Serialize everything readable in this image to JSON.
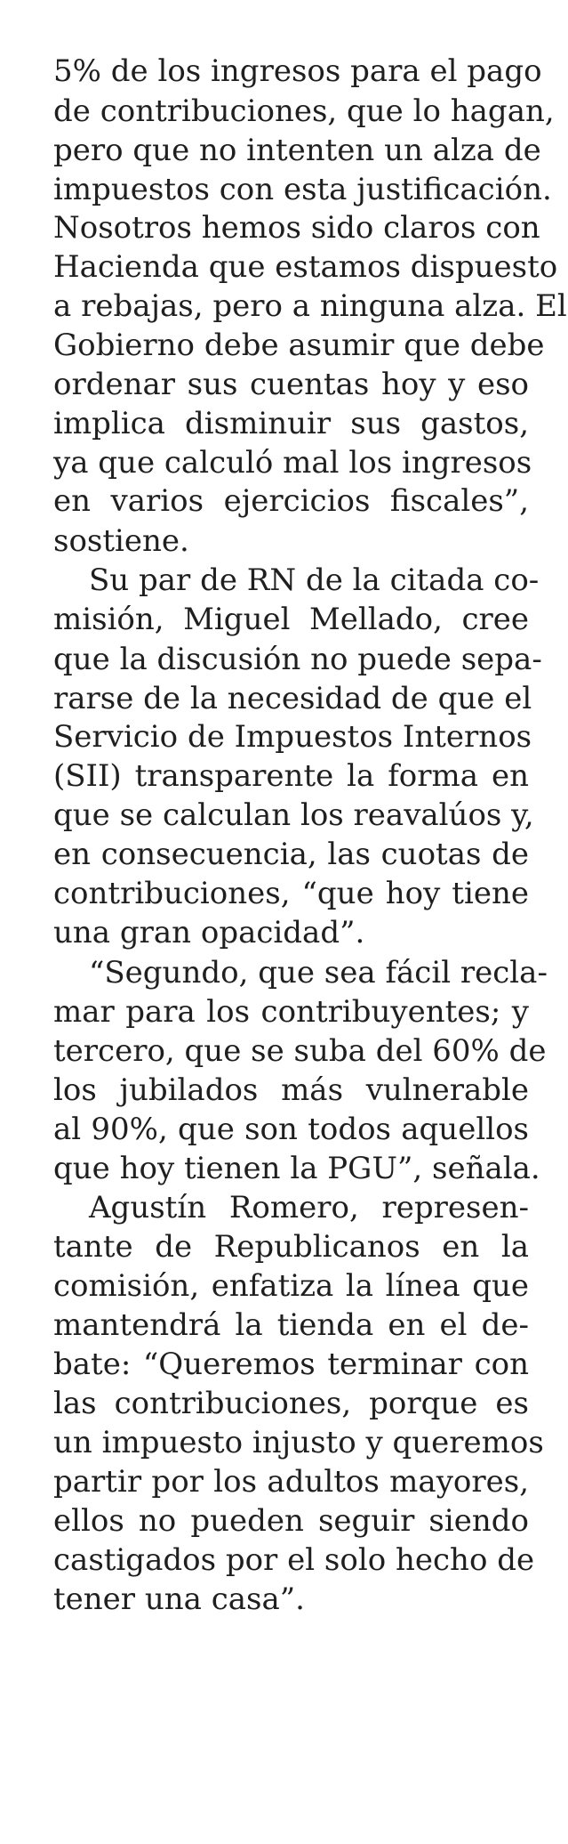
{
  "article": {
    "lines": [
      "5% de los ingresos para el pago",
      "de contribuciones, que lo hagan,",
      "pero que no intenten un alza de",
      "impuestos con esta justificación.",
      "Nosotros hemos sido claros con",
      "Hacienda que estamos dispuesto",
      "a rebajas, pero a ninguna alza. El",
      "Gobierno debe asumir que debe",
      "ordenar sus cuentas hoy y eso",
      "implica disminuir sus gastos,",
      "ya que calculó mal los ingresos",
      "en varios ejercicios fiscales”,",
      "sostiene.",
      "Su par de RN de la citada co-",
      "misión, Miguel Mellado, cree",
      "que la discusión no puede sepa-",
      "rarse de la necesidad de que el",
      "Servicio de Impuestos Internos",
      "(SII) transparente la forma en",
      "que se calculan los reavalúos y,",
      "en consecuencia, las cuotas de",
      "contribuciones, “que hoy tiene",
      "una gran opacidad”.",
      "“Segundo, que sea fácil recla-",
      "mar para los contribuyentes; y",
      "tercero, que se suba del 60% de",
      "los jubilados más vulnerable",
      "al 90%, que son todos aquellos",
      "que hoy tienen la PGU”, señala.",
      "Agustín Romero, represen-",
      "tante de Republicanos en la",
      "comisión, enfatiza la línea que",
      "mantendrá la tienda en el de-",
      "bate: “Queremos terminar con",
      "las contribuciones, porque es",
      "un impuesto injusto y queremos",
      "partir por los adultos mayores,",
      "ellos no pueden seguir siendo",
      "castigados por el solo hecho de",
      "tener una casa”."
    ]
  }
}
